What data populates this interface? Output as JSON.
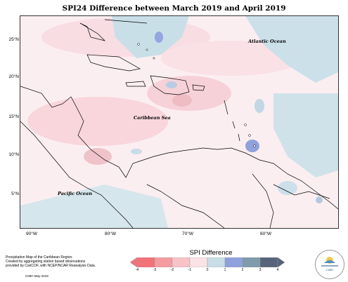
{
  "title": "SPI24 Difference between March 2019 and April 2019",
  "latitudes": [
    "25°N",
    "20°N",
    "15°N",
    "10°N",
    "5°N"
  ],
  "longitudes": [
    "90°W",
    "80°W",
    "70°W",
    "60°W"
  ],
  "places": {
    "atlantic": "Atlantic Ocean",
    "caribbean": "Caribbean Sea",
    "pacific": "Pacific Ocean"
  },
  "footer": {
    "line1": "Precipitation Map of the Caribbean Region.",
    "line2": "Created by aggregating station based observations",
    "line3": "provided by CariCOF, with NCEP/NCAR Reanalysis Data.",
    "credit": "CIMH May-2019"
  },
  "legend": {
    "title": "SPI Difference",
    "ticks": [
      "-4",
      "-3",
      "-2",
      "-1",
      "0",
      "1",
      "2",
      "3",
      "4"
    ],
    "colors": [
      "#f2727a",
      "#f49ca0",
      "#f7c3c6",
      "#fbe3e5",
      "#c9dde6",
      "#8fa0dc",
      "#7f9aab",
      "#56637a"
    ]
  },
  "logo": {
    "text": "CIMH"
  }
}
